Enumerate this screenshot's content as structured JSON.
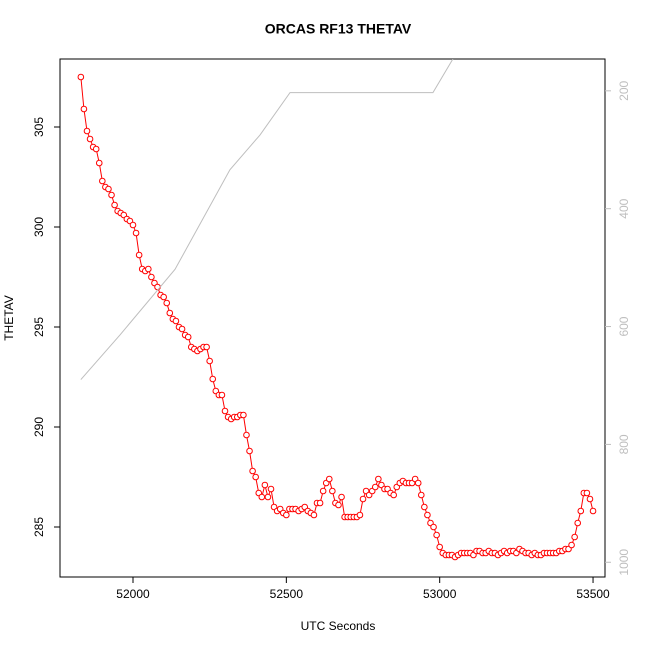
{
  "chart_data": {
    "type": "line",
    "title": "ORCAS RF13 THETAV",
    "x_label": "UTC Seconds",
    "y_label": "THETAV",
    "xlim": [
      51762,
      53539
    ],
    "xticks": [
      52000,
      52500,
      53000,
      53500
    ],
    "ylim": [
      282.5,
      308.4
    ],
    "yticks": [
      285,
      290,
      295,
      300,
      305
    ],
    "y2lim": [
      1025,
      146
    ],
    "y2ticks": [
      200,
      400,
      600,
      800,
      1000
    ],
    "series": [
      {
        "color": "#ff0000",
        "marker": "circle",
        "x": [
          51830,
          51840,
          51850,
          51860,
          51870,
          51880,
          51890,
          51900,
          51910,
          51920,
          51930,
          51940,
          51950,
          51960,
          51970,
          51980,
          51990,
          52000,
          52010,
          52020,
          52030,
          52040,
          52050,
          52060,
          52070,
          52080,
          52090,
          52100,
          52110,
          52120,
          52130,
          52140,
          52150,
          52160,
          52170,
          52180,
          52190,
          52200,
          52210,
          52220,
          52230,
          52240,
          52250,
          52260,
          52270,
          52280,
          52290,
          52300,
          52310,
          52320,
          52330,
          52340,
          52350,
          52360,
          52370,
          52380,
          52390,
          52400,
          52410,
          52420,
          52430,
          52440,
          52450,
          52460,
          52470,
          52480,
          52490,
          52500,
          52510,
          52520,
          52530,
          52540,
          52550,
          52560,
          52570,
          52580,
          52590,
          52600,
          52610,
          52620,
          52630,
          52640,
          52650,
          52660,
          52670,
          52680,
          52690,
          52700,
          52710,
          52720,
          52730,
          52740,
          52750,
          52760,
          52770,
          52780,
          52790,
          52800,
          52810,
          52820,
          52830,
          52840,
          52850,
          52860,
          52870,
          52880,
          52890,
          52900,
          52910,
          52920,
          52930,
          52940,
          52950,
          52960,
          52970,
          52980,
          52990,
          53000,
          53010,
          53020,
          53030,
          53040,
          53050,
          53060,
          53070,
          53080,
          53090,
          53100,
          53110,
          53120,
          53130,
          53140,
          53150,
          53160,
          53170,
          53180,
          53190,
          53200,
          53210,
          53220,
          53230,
          53240,
          53250,
          53260,
          53270,
          53280,
          53290,
          53300,
          53310,
          53320,
          53330,
          53340,
          53350,
          53360,
          53370,
          53380,
          53390,
          53400,
          53410,
          53420,
          53430,
          53440,
          53450,
          53460,
          53470,
          53480,
          53490,
          53500
        ],
        "values": [
          307.5,
          305.9,
          304.8,
          304.4,
          304.0,
          303.9,
          303.2,
          302.3,
          302.0,
          301.9,
          301.6,
          301.1,
          300.8,
          300.7,
          300.6,
          300.4,
          300.3,
          300.1,
          299.7,
          298.6,
          297.9,
          297.8,
          297.9,
          297.5,
          297.2,
          297.0,
          296.6,
          296.5,
          296.2,
          295.7,
          295.4,
          295.3,
          295.0,
          294.9,
          294.6,
          294.5,
          294.0,
          293.9,
          293.8,
          293.9,
          294.0,
          294.0,
          293.3,
          292.4,
          291.8,
          291.6,
          291.6,
          290.8,
          290.5,
          290.4,
          290.5,
          290.5,
          290.6,
          290.6,
          289.6,
          288.8,
          287.8,
          287.5,
          286.7,
          286.5,
          287.1,
          286.5,
          286.9,
          286.0,
          285.8,
          285.9,
          285.7,
          285.6,
          285.9,
          285.9,
          285.9,
          285.8,
          285.9,
          286.0,
          285.8,
          285.7,
          285.6,
          286.2,
          286.2,
          286.8,
          287.2,
          287.4,
          286.8,
          286.2,
          286.1,
          286.5,
          285.5,
          285.5,
          285.5,
          285.5,
          285.5,
          285.6,
          286.4,
          286.8,
          286.6,
          286.8,
          287.0,
          287.4,
          287.1,
          286.9,
          286.9,
          286.7,
          286.6,
          287.0,
          287.2,
          287.3,
          287.2,
          287.2,
          287.2,
          287.4,
          287.2,
          286.6,
          286.0,
          285.6,
          285.2,
          285.0,
          284.6,
          284.0,
          283.7,
          283.6,
          283.6,
          283.6,
          283.5,
          283.6,
          283.7,
          283.7,
          283.7,
          283.7,
          283.6,
          283.8,
          283.8,
          283.7,
          283.7,
          283.8,
          283.7,
          283.7,
          283.6,
          283.7,
          283.8,
          283.7,
          283.8,
          283.8,
          283.7,
          283.9,
          283.8,
          283.7,
          283.7,
          283.6,
          283.7,
          283.6,
          283.6,
          283.7,
          283.7,
          283.7,
          283.7,
          283.7,
          283.8,
          283.8,
          283.9,
          283.9,
          284.1,
          284.5,
          285.2,
          285.8,
          286.7,
          286.7,
          286.4,
          285.8
        ]
      },
      {
        "color": "#bebebe",
        "axis": "y2",
        "x": [
          51830,
          51958,
          52137,
          52316,
          52414,
          52512,
          52978,
          53043
        ],
        "values": [
          690,
          614,
          503,
          334,
          275,
          203,
          203,
          146
        ]
      }
    ]
  }
}
